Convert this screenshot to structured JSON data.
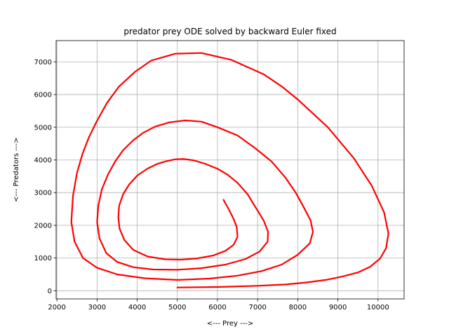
{
  "chart_data": {
    "type": "line",
    "title": "predator prey ODE solved by backward Euler fixed",
    "xlabel": "<--- Prey --->",
    "ylabel": "<--- Predators --->",
    "xlim": [
      1980,
      10650
    ],
    "ylim": [
      -250,
      7650
    ],
    "xticks": [
      2000,
      3000,
      4000,
      5000,
      6000,
      7000,
      8000,
      9000,
      10000
    ],
    "yticks": [
      0,
      1000,
      2000,
      3000,
      4000,
      5000,
      6000,
      7000
    ],
    "grid": true,
    "colors": {
      "line": "#ff0000",
      "grid": "#b0b0b0"
    },
    "series": [
      {
        "name": "",
        "points": [
          [
            5000,
            100
          ],
          [
            6000,
            115
          ],
          [
            7000,
            150
          ],
          [
            7700,
            190
          ],
          [
            8200,
            250
          ],
          [
            8700,
            330
          ],
          [
            9100,
            430
          ],
          [
            9500,
            560
          ],
          [
            9800,
            730
          ],
          [
            10050,
            980
          ],
          [
            10200,
            1300
          ],
          [
            10260,
            1750
          ],
          [
            10150,
            2400
          ],
          [
            9850,
            3200
          ],
          [
            9400,
            4050
          ],
          [
            8750,
            5000
          ],
          [
            8000,
            5850
          ],
          [
            7600,
            6250
          ],
          [
            7150,
            6620
          ],
          [
            6350,
            7060
          ],
          [
            5600,
            7270
          ],
          [
            4950,
            7250
          ],
          [
            4350,
            7040
          ],
          [
            3950,
            6700
          ],
          [
            3550,
            6250
          ],
          [
            3250,
            5750
          ],
          [
            3000,
            5200
          ],
          [
            2800,
            4700
          ],
          [
            2640,
            4200
          ],
          [
            2500,
            3600
          ],
          [
            2400,
            2900
          ],
          [
            2360,
            2100
          ],
          [
            2440,
            1500
          ],
          [
            2650,
            1000
          ],
          [
            3000,
            700
          ],
          [
            3500,
            500
          ],
          [
            4200,
            380
          ],
          [
            5000,
            330
          ],
          [
            5800,
            370
          ],
          [
            6500,
            460
          ],
          [
            7100,
            600
          ],
          [
            7600,
            800
          ],
          [
            8000,
            1100
          ],
          [
            8300,
            1450
          ],
          [
            8380,
            1800
          ],
          [
            8320,
            2150
          ],
          [
            8150,
            2550
          ],
          [
            7950,
            3000
          ],
          [
            7700,
            3450
          ],
          [
            7350,
            3950
          ],
          [
            6950,
            4350
          ],
          [
            6500,
            4750
          ],
          [
            6000,
            5000
          ],
          [
            5600,
            5170
          ],
          [
            5200,
            5210
          ],
          [
            4800,
            5150
          ],
          [
            4450,
            5020
          ],
          [
            4150,
            4830
          ],
          [
            3900,
            4600
          ],
          [
            3650,
            4300
          ],
          [
            3450,
            3950
          ],
          [
            3270,
            3550
          ],
          [
            3120,
            3100
          ],
          [
            3030,
            2600
          ],
          [
            3000,
            2100
          ],
          [
            3060,
            1600
          ],
          [
            3230,
            1150
          ],
          [
            3500,
            880
          ],
          [
            3900,
            720
          ],
          [
            4400,
            650
          ],
          [
            5000,
            640
          ],
          [
            5600,
            690
          ],
          [
            6200,
            800
          ],
          [
            6700,
            970
          ],
          [
            7050,
            1200
          ],
          [
            7250,
            1500
          ],
          [
            7260,
            1800
          ],
          [
            7150,
            2150
          ],
          [
            6950,
            2550
          ],
          [
            6750,
            2950
          ],
          [
            6500,
            3300
          ],
          [
            6250,
            3550
          ],
          [
            6000,
            3730
          ],
          [
            5700,
            3880
          ],
          [
            5400,
            3990
          ],
          [
            5150,
            4030
          ],
          [
            4950,
            4020
          ],
          [
            4750,
            3970
          ],
          [
            4500,
            3880
          ],
          [
            4250,
            3730
          ],
          [
            4000,
            3520
          ],
          [
            3800,
            3250
          ],
          [
            3650,
            2950
          ],
          [
            3550,
            2600
          ],
          [
            3530,
            2250
          ],
          [
            3560,
            1900
          ],
          [
            3680,
            1550
          ],
          [
            3900,
            1250
          ],
          [
            4250,
            1050
          ],
          [
            4700,
            960
          ],
          [
            5100,
            950
          ],
          [
            5500,
            990
          ],
          [
            5900,
            1080
          ],
          [
            6200,
            1220
          ],
          [
            6400,
            1400
          ],
          [
            6500,
            1650
          ],
          [
            6480,
            1950
          ],
          [
            6400,
            2200
          ],
          [
            6300,
            2450
          ],
          [
            6150,
            2780
          ]
        ]
      }
    ]
  }
}
